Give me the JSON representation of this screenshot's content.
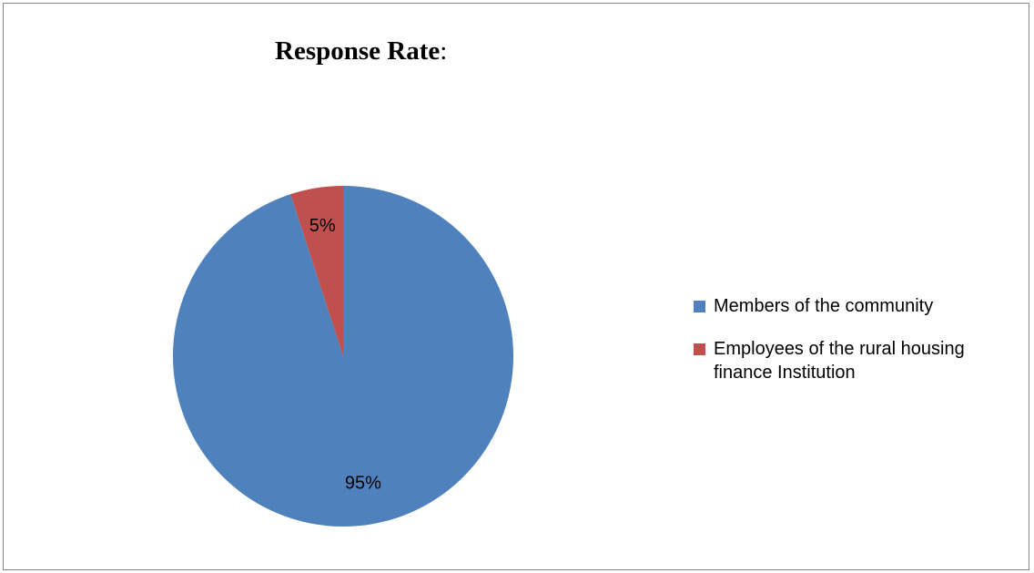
{
  "chart_data": {
    "type": "pie",
    "title": "Response Rate",
    "title_suffix": ":",
    "slices": [
      {
        "label": "Members of the community",
        "value": 95,
        "data_label": "95%",
        "color": "#4f81bd"
      },
      {
        "label": "Employees of the rural housing finance  Institution",
        "value": 5,
        "data_label": "5%",
        "color": "#c0504d"
      }
    ],
    "legend_position": "right"
  }
}
